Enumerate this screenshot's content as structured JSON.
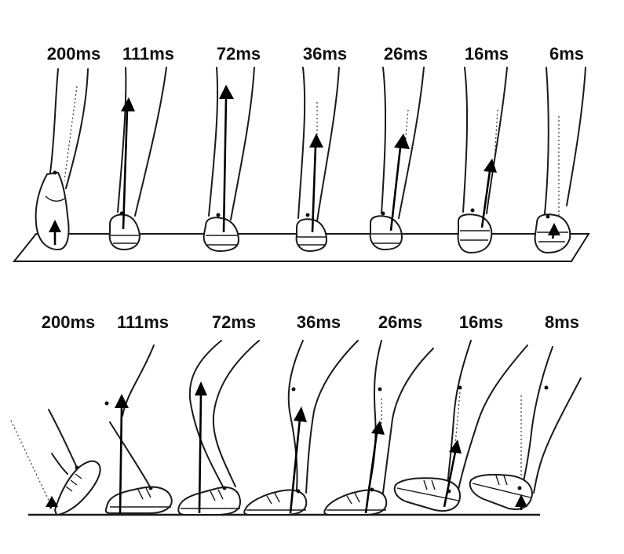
{
  "rear_view": {
    "labels": [
      "200ms",
      "111ms",
      "72ms",
      "36ms",
      "26ms",
      "16ms",
      "6ms"
    ]
  },
  "side_view": {
    "labels": [
      "200ms",
      "111ms",
      "72ms",
      "36ms",
      "26ms",
      "16ms",
      "8ms"
    ]
  },
  "colors": {
    "line": "#1a1a1a",
    "vector": "#000000",
    "background": "#ffffff"
  }
}
